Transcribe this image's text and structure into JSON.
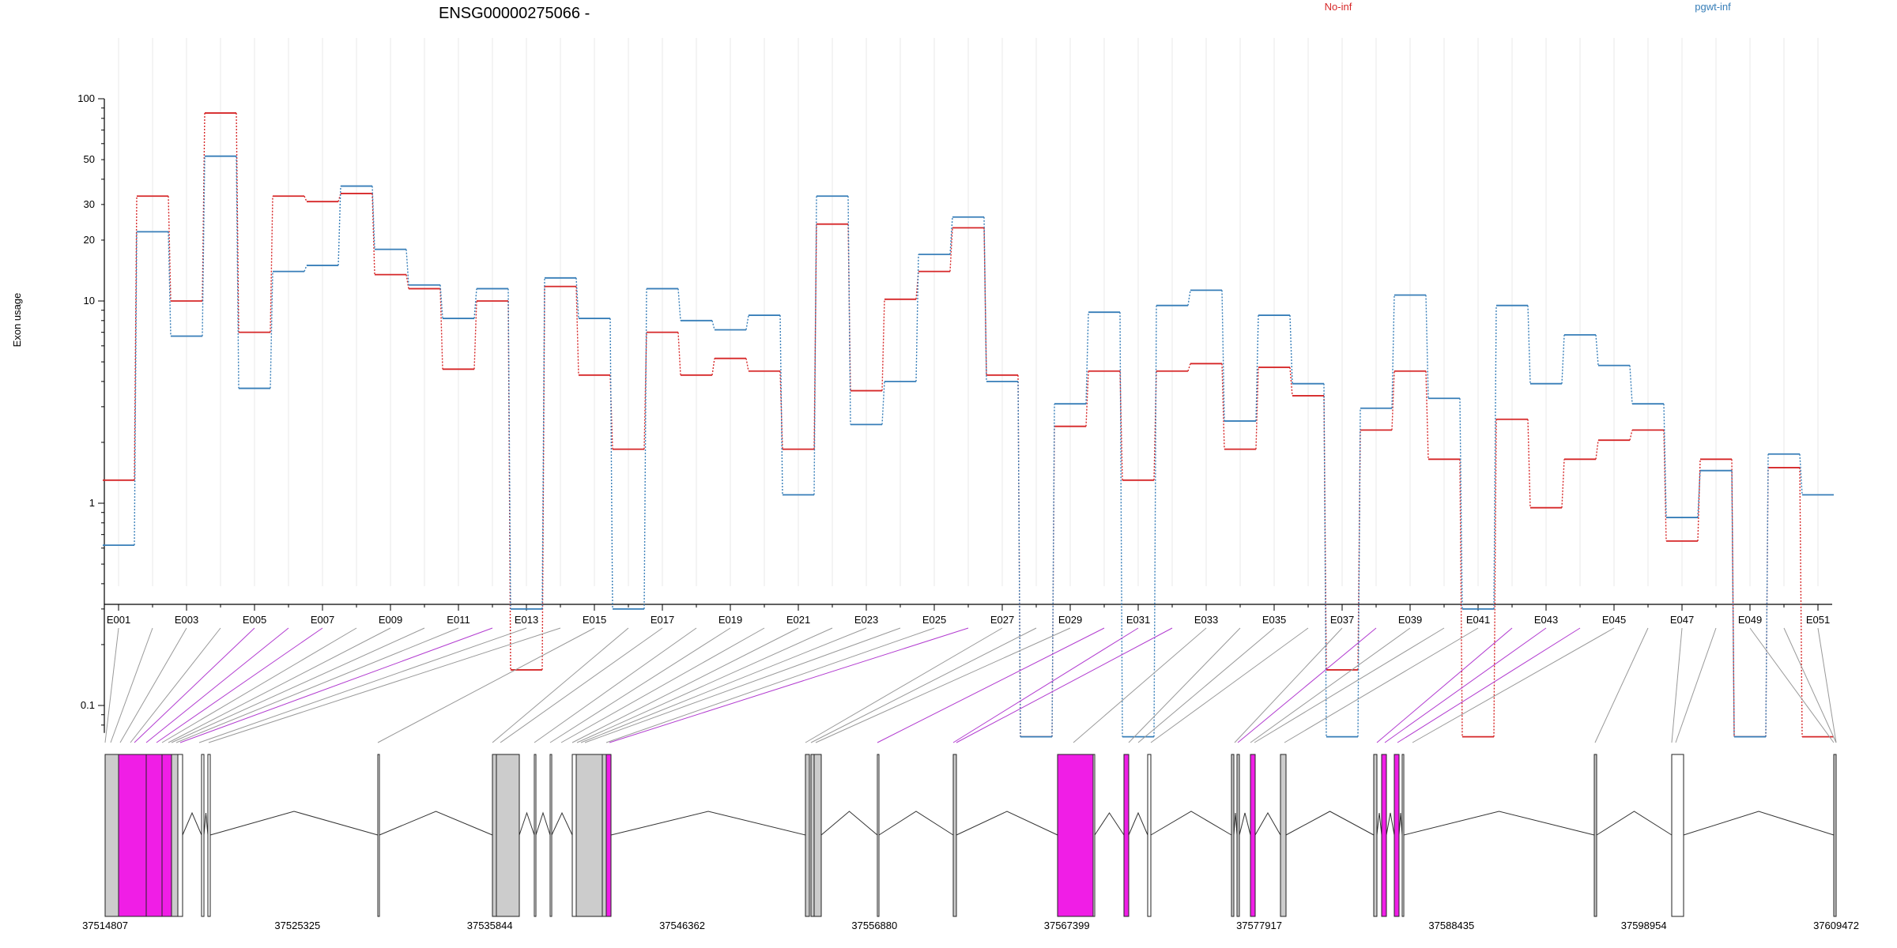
{
  "chart_data": {
    "type": "line",
    "title": "ENSG00000275066 -",
    "ylabel": "Exon usage",
    "yscale": "log",
    "ylim": [
      0.08,
      100
    ],
    "yticks": [
      0.1,
      1,
      10,
      20,
      30,
      50,
      100
    ],
    "ytick_labels": [
      "0.1",
      "1",
      "10",
      "20",
      "30",
      "50",
      "100"
    ],
    "grid": "vertical",
    "legend": "top-right",
    "categories": [
      "E001",
      "E002",
      "E003",
      "E004",
      "E005",
      "E006",
      "E007",
      "E008",
      "E009",
      "E010",
      "E011",
      "E012",
      "E013",
      "E014",
      "E015",
      "E016",
      "E017",
      "E018",
      "E019",
      "E020",
      "E021",
      "E022",
      "E023",
      "E024",
      "E025",
      "E026",
      "E027",
      "E028",
      "E029",
      "E030",
      "E031",
      "E032",
      "E033",
      "E034",
      "E035",
      "E036",
      "E037",
      "E038",
      "E039",
      "E040",
      "E041",
      "E042",
      "E043",
      "E044",
      "E045",
      "E046",
      "E047",
      "E048",
      "E049",
      "E050",
      "E051"
    ],
    "xtick_labels": [
      "E001",
      "E003",
      "E005",
      "E007",
      "E009",
      "E011",
      "E013",
      "E015",
      "E017",
      "E019",
      "E021",
      "E023",
      "E025",
      "E027",
      "E029",
      "E031",
      "E033",
      "E035",
      "E037",
      "E039",
      "E041",
      "E043",
      "E045",
      "E047",
      "E049",
      "E051"
    ],
    "series": [
      {
        "name": "No-inf",
        "color": "#d62728",
        "values": [
          1.3,
          33,
          10,
          85,
          7,
          33,
          31,
          34,
          13.5,
          11.5,
          4.6,
          10,
          0.15,
          11.8,
          4.3,
          1.85,
          7,
          4.3,
          5.2,
          4.5,
          1.85,
          24,
          3.6,
          10.2,
          14,
          23,
          4.3,
          0.07,
          2.4,
          4.5,
          1.3,
          4.5,
          4.9,
          1.85,
          4.7,
          3.4,
          0.15,
          2.3,
          4.5,
          1.65,
          0.07,
          2.6,
          0.95,
          1.65,
          2.05,
          2.3,
          0.65,
          1.65,
          0.07,
          1.5,
          0.07
        ]
      },
      {
        "name": "pgwt-inf",
        "color": "#377eb8",
        "values": [
          0.62,
          22,
          6.7,
          52,
          3.7,
          14,
          15,
          37,
          18,
          12,
          8.2,
          11.5,
          0.3,
          13,
          8.2,
          0.3,
          11.5,
          8,
          7.2,
          8.5,
          1.1,
          33,
          2.45,
          4,
          17,
          26,
          4,
          0.07,
          3.1,
          8.8,
          0.07,
          9.5,
          11.3,
          2.55,
          8.5,
          3.9,
          0.07,
          2.95,
          10.7,
          3.3,
          0.3,
          9.5,
          3.9,
          6.8,
          4.8,
          3.1,
          0.85,
          1.45,
          0.07,
          1.75,
          1.1
        ]
      }
    ],
    "gene_coordinates": [
      "37514807",
      "37525325",
      "37535844",
      "37546362",
      "37556880",
      "37567399",
      "37577917",
      "37588435",
      "37598954",
      "37609472"
    ]
  },
  "gene_model": {
    "highlight_color": "#f01ee6",
    "exon_color": "#cccccc"
  }
}
